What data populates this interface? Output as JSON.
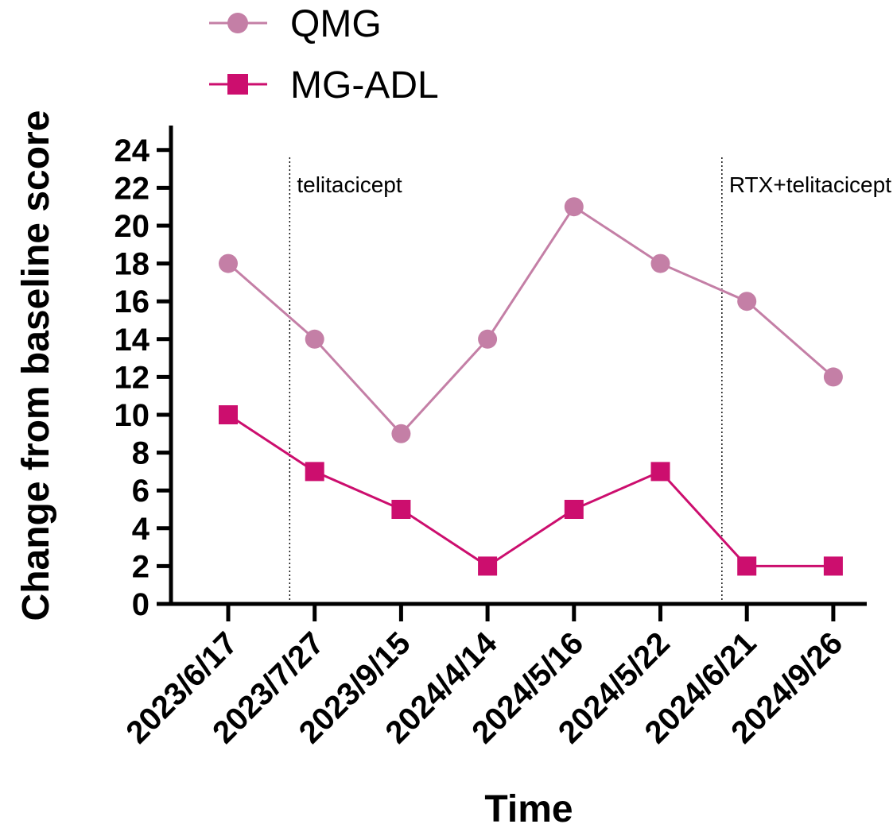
{
  "chart_data": {
    "type": "line",
    "title": "",
    "xlabel": "Time",
    "ylabel": "Change from baseline score",
    "ylim": [
      0,
      25
    ],
    "yticks": [
      0,
      2,
      4,
      6,
      8,
      10,
      12,
      14,
      16,
      18,
      20,
      22,
      24
    ],
    "ytick_labels": [
      "0",
      "2",
      "4",
      "6",
      "8",
      "10",
      "12",
      "14",
      "16",
      "18",
      "20",
      "22",
      "24"
    ],
    "categories": [
      "2023/6/17",
      "2023/7/27",
      "2023/9/15",
      "2024/4/14",
      "2024/5/16",
      "2024/5/22",
      "2024/6/21",
      "2024/9/26"
    ],
    "series": [
      {
        "name": "QMG",
        "marker": "circle",
        "color": "#c47fa6",
        "values": [
          18,
          14,
          9,
          14,
          21,
          18,
          16,
          12
        ]
      },
      {
        "name": "MG-ADL",
        "marker": "square",
        "color": "#cc0e6e",
        "values": [
          10,
          7,
          5,
          2,
          5,
          7,
          2,
          2
        ]
      }
    ],
    "legend_position": "top-left",
    "grid": false,
    "annotations": [
      {
        "text": "telitacicept",
        "after_category_index": 0
      },
      {
        "text": "RTX+telitacicept",
        "after_category_index": 5
      }
    ]
  }
}
